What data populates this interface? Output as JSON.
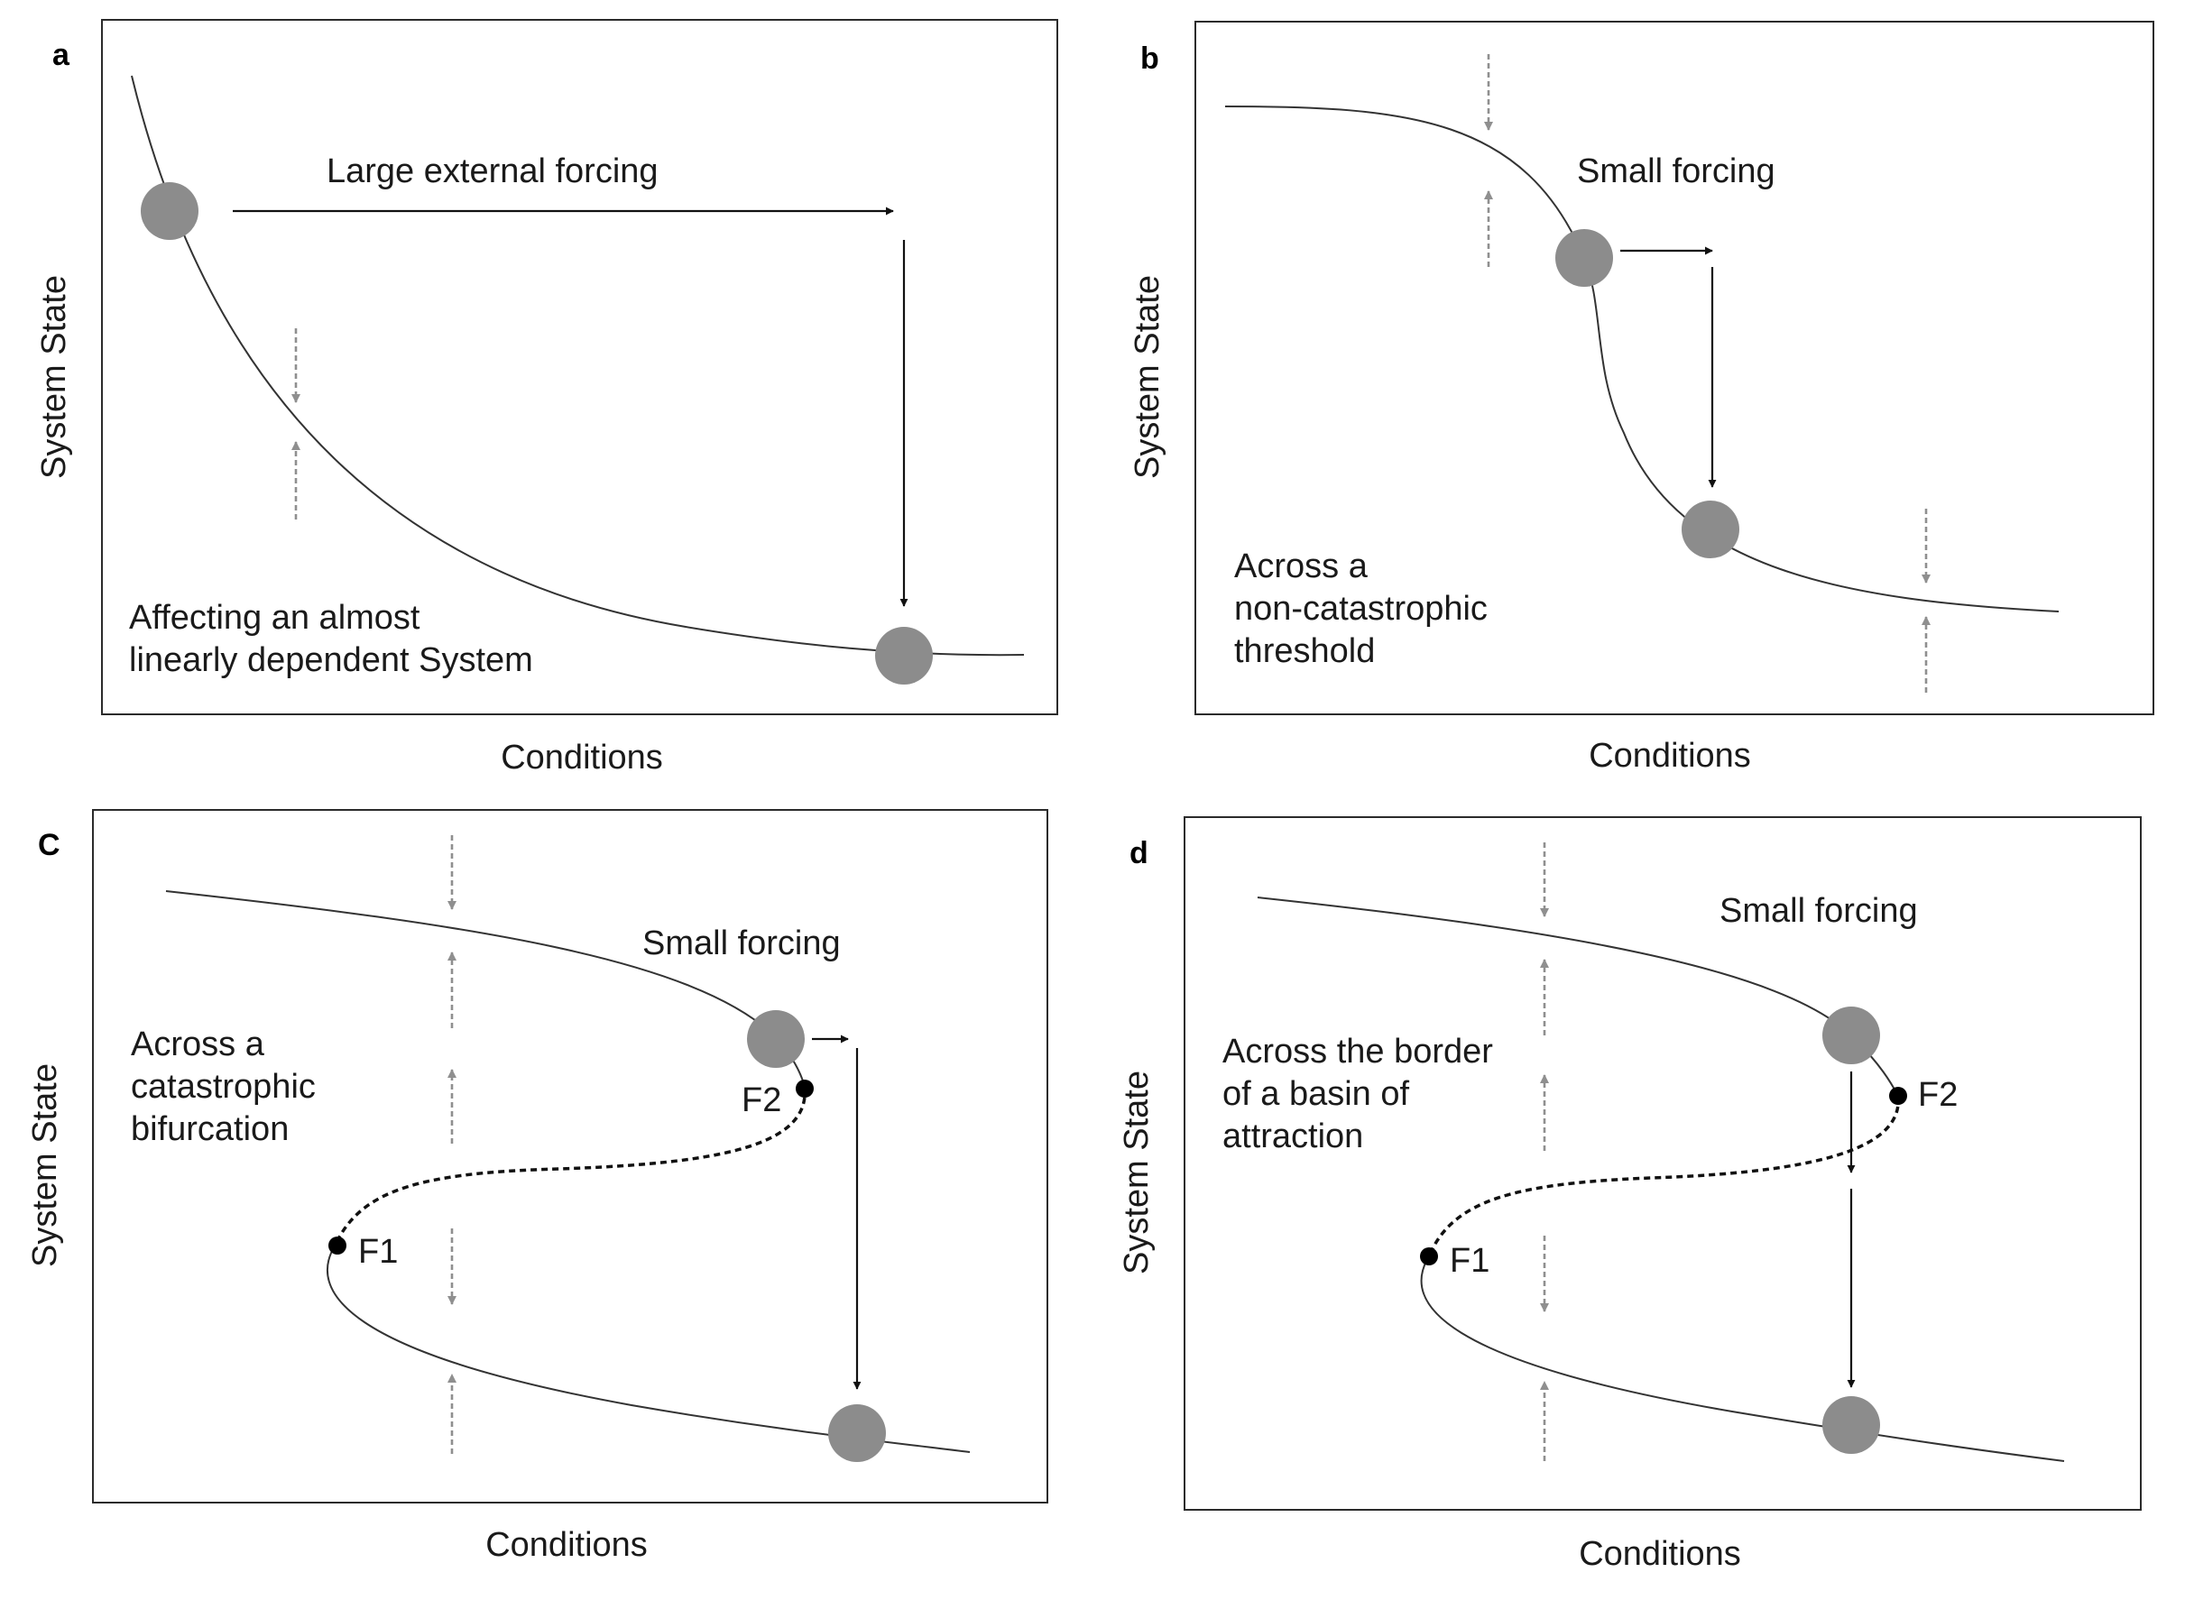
{
  "panels": [
    {
      "id": "a",
      "letter": "a",
      "xlabel": "Conditions",
      "ylabel": "System State",
      "forcing_label": "Large external forcing",
      "description": [
        "Affecting an almost",
        "linearly dependent System"
      ]
    },
    {
      "id": "b",
      "letter": "b",
      "xlabel": "Conditions",
      "ylabel": "System State",
      "forcing_label": "Small forcing",
      "description": [
        "Across a",
        "non-catastrophic",
        "threshold"
      ]
    },
    {
      "id": "c",
      "letter": "C",
      "xlabel": "Conditions",
      "ylabel": "System State",
      "forcing_label": "Small forcing",
      "description": [
        "Across a",
        "catastrophic",
        "bifurcation"
      ],
      "fold_labels": [
        "F1",
        "F2"
      ]
    },
    {
      "id": "d",
      "letter": "d",
      "xlabel": "Conditions",
      "ylabel": "System State",
      "forcing_label": "Small forcing",
      "description": [
        "Across the border",
        "of a basin of",
        "attraction"
      ],
      "fold_labels": [
        "F1",
        "F2"
      ]
    }
  ],
  "colors": {
    "ball": "#8c8c8c",
    "stability_arrow": "#8f8f8f",
    "forcing_arrow": "#111111",
    "curve": "#333333"
  }
}
